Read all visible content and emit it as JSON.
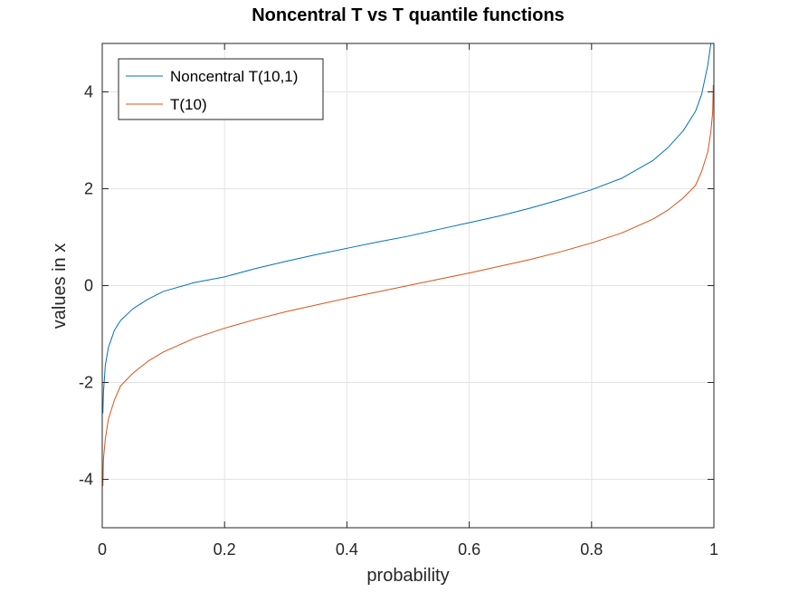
{
  "chart_data": {
    "type": "line",
    "title": "Noncentral T vs T quantile functions",
    "xlabel": "probability",
    "ylabel": "values in x",
    "xlim": [
      0,
      1
    ],
    "ylim": [
      -5,
      5
    ],
    "xticks": [
      0,
      0.2,
      0.4,
      0.6,
      0.8,
      1
    ],
    "xtick_labels": [
      "0",
      "0.2",
      "0.4",
      "0.6",
      "0.8",
      "1"
    ],
    "yticks": [
      -4,
      -2,
      0,
      2,
      4
    ],
    "ytick_labels": [
      "-4",
      "-2",
      "0",
      "2",
      "4"
    ],
    "grid": true,
    "legend": "top-left",
    "series": [
      {
        "name": "Noncentral T(10,1)",
        "color": "#0072bd",
        "x": [
          0.001,
          0.002,
          0.005,
          0.01,
          0.02,
          0.03,
          0.05,
          0.075,
          0.1,
          0.15,
          0.2,
          0.25,
          0.3,
          0.35,
          0.4,
          0.45,
          0.5,
          0.55,
          0.6,
          0.65,
          0.7,
          0.75,
          0.8,
          0.85,
          0.9,
          0.925,
          0.95,
          0.97,
          0.98,
          0.99,
          0.995,
          0.998,
          0.999
        ],
        "y": [
          -2.64,
          -2.2,
          -1.65,
          -1.28,
          -0.92,
          -0.72,
          -0.48,
          -0.28,
          -0.12,
          0.06,
          0.18,
          0.35,
          0.5,
          0.64,
          0.77,
          0.9,
          1.02,
          1.16,
          1.3,
          1.44,
          1.6,
          1.78,
          1.98,
          2.22,
          2.58,
          2.85,
          3.2,
          3.6,
          3.95,
          4.55,
          5.0,
          5.7,
          6.3
        ]
      },
      {
        "name": "T(10)",
        "color": "#d95319",
        "x": [
          0.001,
          0.002,
          0.005,
          0.01,
          0.02,
          0.03,
          0.05,
          0.075,
          0.1,
          0.15,
          0.2,
          0.25,
          0.3,
          0.35,
          0.4,
          0.45,
          0.5,
          0.55,
          0.6,
          0.65,
          0.7,
          0.75,
          0.8,
          0.85,
          0.9,
          0.925,
          0.95,
          0.97,
          0.98,
          0.99,
          0.995,
          0.998,
          0.999
        ],
        "y": [
          -4.14,
          -3.58,
          -3.17,
          -2.76,
          -2.36,
          -2.07,
          -1.81,
          -1.56,
          -1.37,
          -1.09,
          -0.88,
          -0.7,
          -0.54,
          -0.4,
          -0.26,
          -0.13,
          0.0,
          0.13,
          0.26,
          0.4,
          0.54,
          0.7,
          0.88,
          1.09,
          1.37,
          1.56,
          1.81,
          2.07,
          2.36,
          2.76,
          3.17,
          3.58,
          4.14
        ]
      }
    ]
  }
}
